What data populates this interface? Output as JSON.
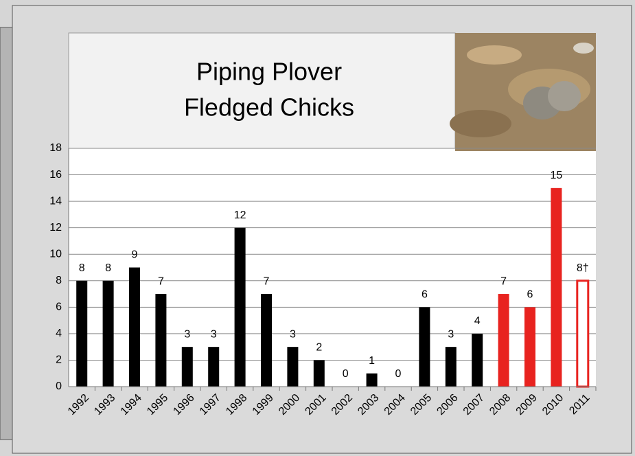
{
  "chart_data": {
    "type": "bar",
    "title": [
      "Piping Plover",
      "Fledged Chicks"
    ],
    "categories": [
      "1992",
      "1993",
      "1994",
      "1995",
      "1996",
      "1997",
      "1998",
      "1999",
      "2000",
      "2001",
      "2002",
      "2003",
      "2004",
      "2005",
      "2006",
      "2007",
      "2008",
      "2009",
      "2010",
      "2011"
    ],
    "values": [
      8,
      8,
      9,
      7,
      3,
      3,
      12,
      7,
      3,
      2,
      0,
      1,
      0,
      6,
      3,
      4,
      7,
      6,
      15,
      8
    ],
    "value_labels": [
      "8",
      "8",
      "9",
      "7",
      "3",
      "3",
      "12",
      "7",
      "3",
      "2",
      "0",
      "1",
      "0",
      "6",
      "3",
      "4",
      "7",
      "6",
      "15",
      "8†"
    ],
    "colors": [
      "#000000",
      "#000000",
      "#000000",
      "#000000",
      "#000000",
      "#000000",
      "#000000",
      "#000000",
      "#000000",
      "#000000",
      "#000000",
      "#000000",
      "#000000",
      "#000000",
      "#000000",
      "#000000",
      "#e8231f",
      "#e8231f",
      "#e8231f",
      "#e8231f"
    ],
    "styles": [
      "solid",
      "solid",
      "solid",
      "solid",
      "solid",
      "solid",
      "solid",
      "solid",
      "solid",
      "solid",
      "solid",
      "solid",
      "solid",
      "solid",
      "solid",
      "solid",
      "solid",
      "solid",
      "solid",
      "outline"
    ],
    "ylim": [
      0,
      18
    ],
    "yticks": [
      0,
      2,
      4,
      6,
      8,
      10,
      12,
      14,
      16,
      18
    ],
    "grid": true
  }
}
